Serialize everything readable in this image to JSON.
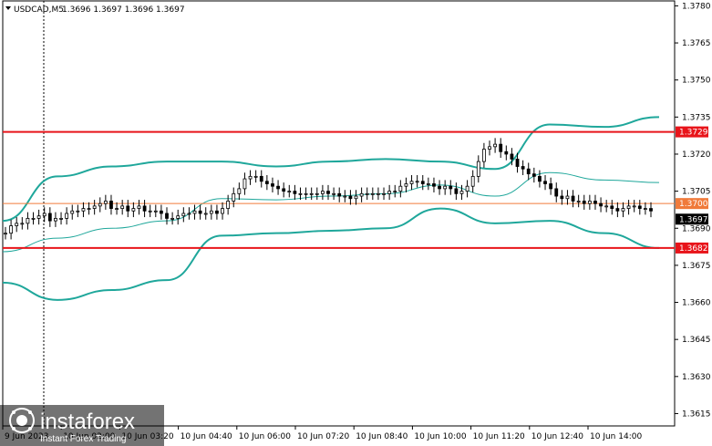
{
  "header": {
    "symbol_label": "USDCAD,M5",
    "ohlc": "1.3696 1.3697 1.3696 1.3697"
  },
  "y_axis": {
    "ticks": [
      "1.3780",
      "1.3765",
      "1.3750",
      "1.3735",
      "1.3720",
      "1.3705",
      "1.3690",
      "1.3675",
      "1.3660",
      "1.3645",
      "1.3630",
      "1.3615"
    ]
  },
  "x_axis": {
    "labels": [
      "9 Jun 2023",
      "10 Jun 02:00",
      "10 Jun 03:20",
      "10 Jun 04:40",
      "10 Jun 06:00",
      "10 Jun 07:20",
      "10 Jun 08:40",
      "10 Jun 10:00",
      "10 Jun 11:20",
      "10 Jun 12:40",
      "10 Jun 14:00"
    ]
  },
  "levels": [
    {
      "value": 1.3729,
      "label": "1.3729",
      "color": "#e8141a"
    },
    {
      "value": 1.37,
      "label": "1.3700",
      "color": "#f07a3a"
    },
    {
      "value": 1.3682,
      "label": "1.3682",
      "color": "#e8141a"
    }
  ],
  "current_price": {
    "value": 1.3697,
    "label": "1.3697",
    "color": "#000000"
  },
  "watermark": {
    "brand": "instaforex",
    "tagline": "Instant Forex Trading"
  },
  "colors": {
    "bollinger": "#1fa79b",
    "candle": "#000000",
    "grid_axis": "#000000"
  },
  "chart_data": {
    "type": "candlestick",
    "symbol": "USDCAD",
    "timeframe": "M5",
    "y_range": [
      1.361,
      1.3782
    ],
    "close_values": [
      1.3688,
      1.3691,
      1.3692,
      1.3692,
      1.3694,
      1.3694,
      1.3695,
      1.3696,
      1.3693,
      1.3694,
      1.3694,
      1.3696,
      1.3697,
      1.3697,
      1.3698,
      1.3698,
      1.3699,
      1.37,
      1.3701,
      1.3698,
      1.3698,
      1.3699,
      1.3697,
      1.3698,
      1.3699,
      1.3697,
      1.3697,
      1.3697,
      1.3696,
      1.3694,
      1.3694,
      1.3695,
      1.3696,
      1.3696,
      1.3697,
      1.3696,
      1.3696,
      1.3697,
      1.3696,
      1.3698,
      1.3701,
      1.3704,
      1.3706,
      1.371,
      1.3711,
      1.3711,
      1.3709,
      1.3708,
      1.3707,
      1.3706,
      1.3705,
      1.3705,
      1.3704,
      1.3704,
      1.3704,
      1.3704,
      1.3704,
      1.3705,
      1.3704,
      1.3704,
      1.3703,
      1.3703,
      1.3702,
      1.3703,
      1.3704,
      1.3704,
      1.3704,
      1.3704,
      1.3704,
      1.3705,
      1.3705,
      1.3707,
      1.3708,
      1.3709,
      1.3709,
      1.3708,
      1.3708,
      1.3707,
      1.3706,
      1.3707,
      1.3706,
      1.3704,
      1.3705,
      1.3707,
      1.3711,
      1.3717,
      1.3722,
      1.3723,
      1.3724,
      1.3721,
      1.372,
      1.3718,
      1.3715,
      1.3714,
      1.3712,
      1.3711,
      1.3709,
      1.3708,
      1.3706,
      1.3703,
      1.3702,
      1.3703,
      1.3701,
      1.3701,
      1.37,
      1.3701,
      1.37,
      1.3699,
      1.3699,
      1.3698,
      1.3697,
      1.3698,
      1.3699,
      1.3699,
      1.3698,
      1.3698,
      1.3697
    ],
    "bollinger_upper_approx": [
      1.3693,
      1.3711,
      1.3715,
      1.3717,
      1.3717,
      1.3715,
      1.3717,
      1.3718,
      1.3717,
      1.3714,
      1.3732,
      1.3731,
      1.3735
    ],
    "bollinger_lower_approx": [
      1.3668,
      1.3661,
      1.3665,
      1.3669,
      1.3687,
      1.3688,
      1.3689,
      1.369,
      1.3698,
      1.3692,
      1.3693,
      1.3688,
      1.3682
    ],
    "levels": [
      1.3729,
      1.37,
      1.3682
    ]
  }
}
